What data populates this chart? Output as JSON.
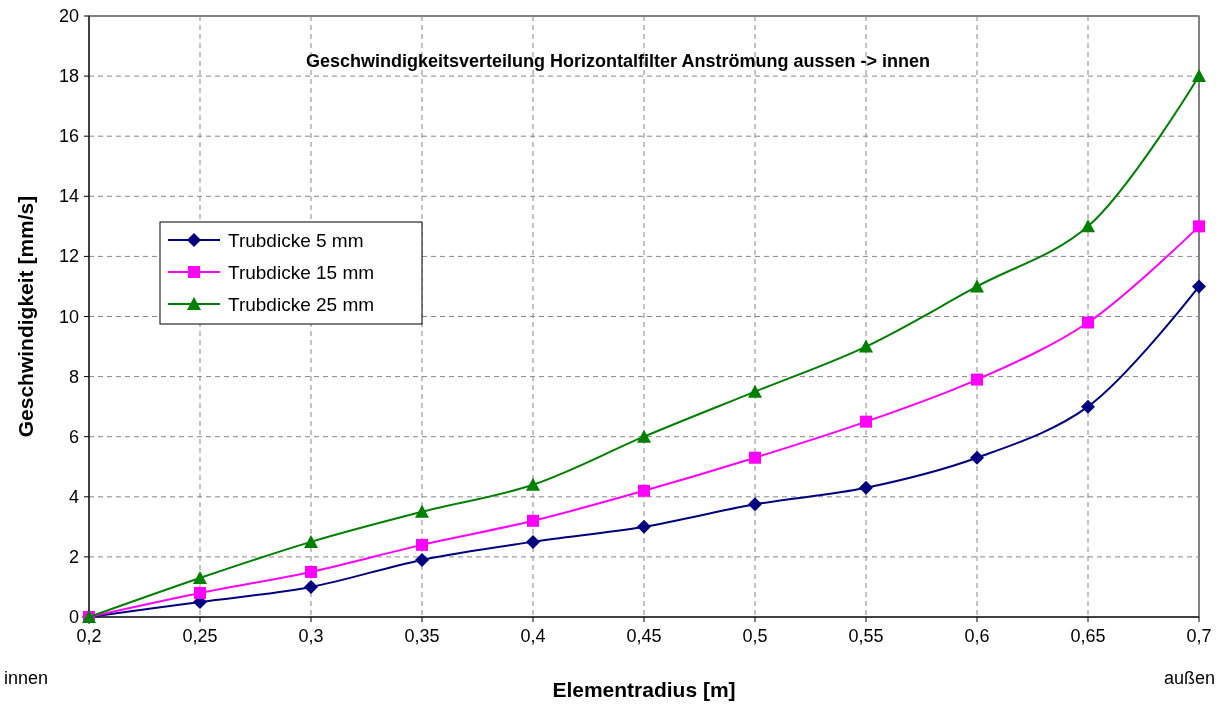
{
  "chart_data": {
    "type": "line",
    "title": "Geschwindigkeitsverteilung Horizontalfilter Anströmung aussen -> innen",
    "xlabel": "Elementradius [m]",
    "ylabel": "Geschwindigkeit [mm/s]",
    "annotations": [
      "innen",
      "außen"
    ],
    "x": [
      0.2,
      0.25,
      0.3,
      0.35,
      0.4,
      0.45,
      0.5,
      0.55,
      0.6,
      0.65,
      0.7
    ],
    "xlim": [
      0.2,
      0.7
    ],
    "xticks": [
      {
        "value": 0.2,
        "label": "0,2"
      },
      {
        "value": 0.25,
        "label": "0,25"
      },
      {
        "value": 0.3,
        "label": "0,3"
      },
      {
        "value": 0.35,
        "label": "0,35"
      },
      {
        "value": 0.4,
        "label": "0,4"
      },
      {
        "value": 0.45,
        "label": "0,45"
      },
      {
        "value": 0.5,
        "label": "0,5"
      },
      {
        "value": 0.55,
        "label": "0,55"
      },
      {
        "value": 0.6,
        "label": "0,6"
      },
      {
        "value": 0.65,
        "label": "0,65"
      },
      {
        "value": 0.7,
        "label": "0,7"
      }
    ],
    "ylim": [
      0,
      20
    ],
    "yticks": [
      0,
      2,
      4,
      6,
      8,
      10,
      12,
      14,
      16,
      18,
      20
    ],
    "grid": true,
    "legend": "left",
    "line_style": "solid",
    "series": [
      {
        "name": "Trubdicke 5 mm",
        "color": "#000080",
        "marker": "diamond",
        "values": [
          0,
          0.5,
          1.0,
          1.9,
          2.5,
          3.0,
          3.75,
          4.3,
          5.3,
          7.0,
          11.0
        ]
      },
      {
        "name": "Trubdicke 15 mm",
        "color": "#ff00ff",
        "marker": "square",
        "values": [
          0,
          0.8,
          1.5,
          2.4,
          3.2,
          4.2,
          5.3,
          6.5,
          7.9,
          9.8,
          13.0
        ]
      },
      {
        "name": "Trubdicke 25 mm",
        "color": "#008000",
        "marker": "triangle",
        "values": [
          0,
          1.3,
          2.5,
          3.5,
          4.4,
          6.0,
          7.5,
          9.0,
          11.0,
          13.0,
          18.0
        ]
      }
    ]
  }
}
